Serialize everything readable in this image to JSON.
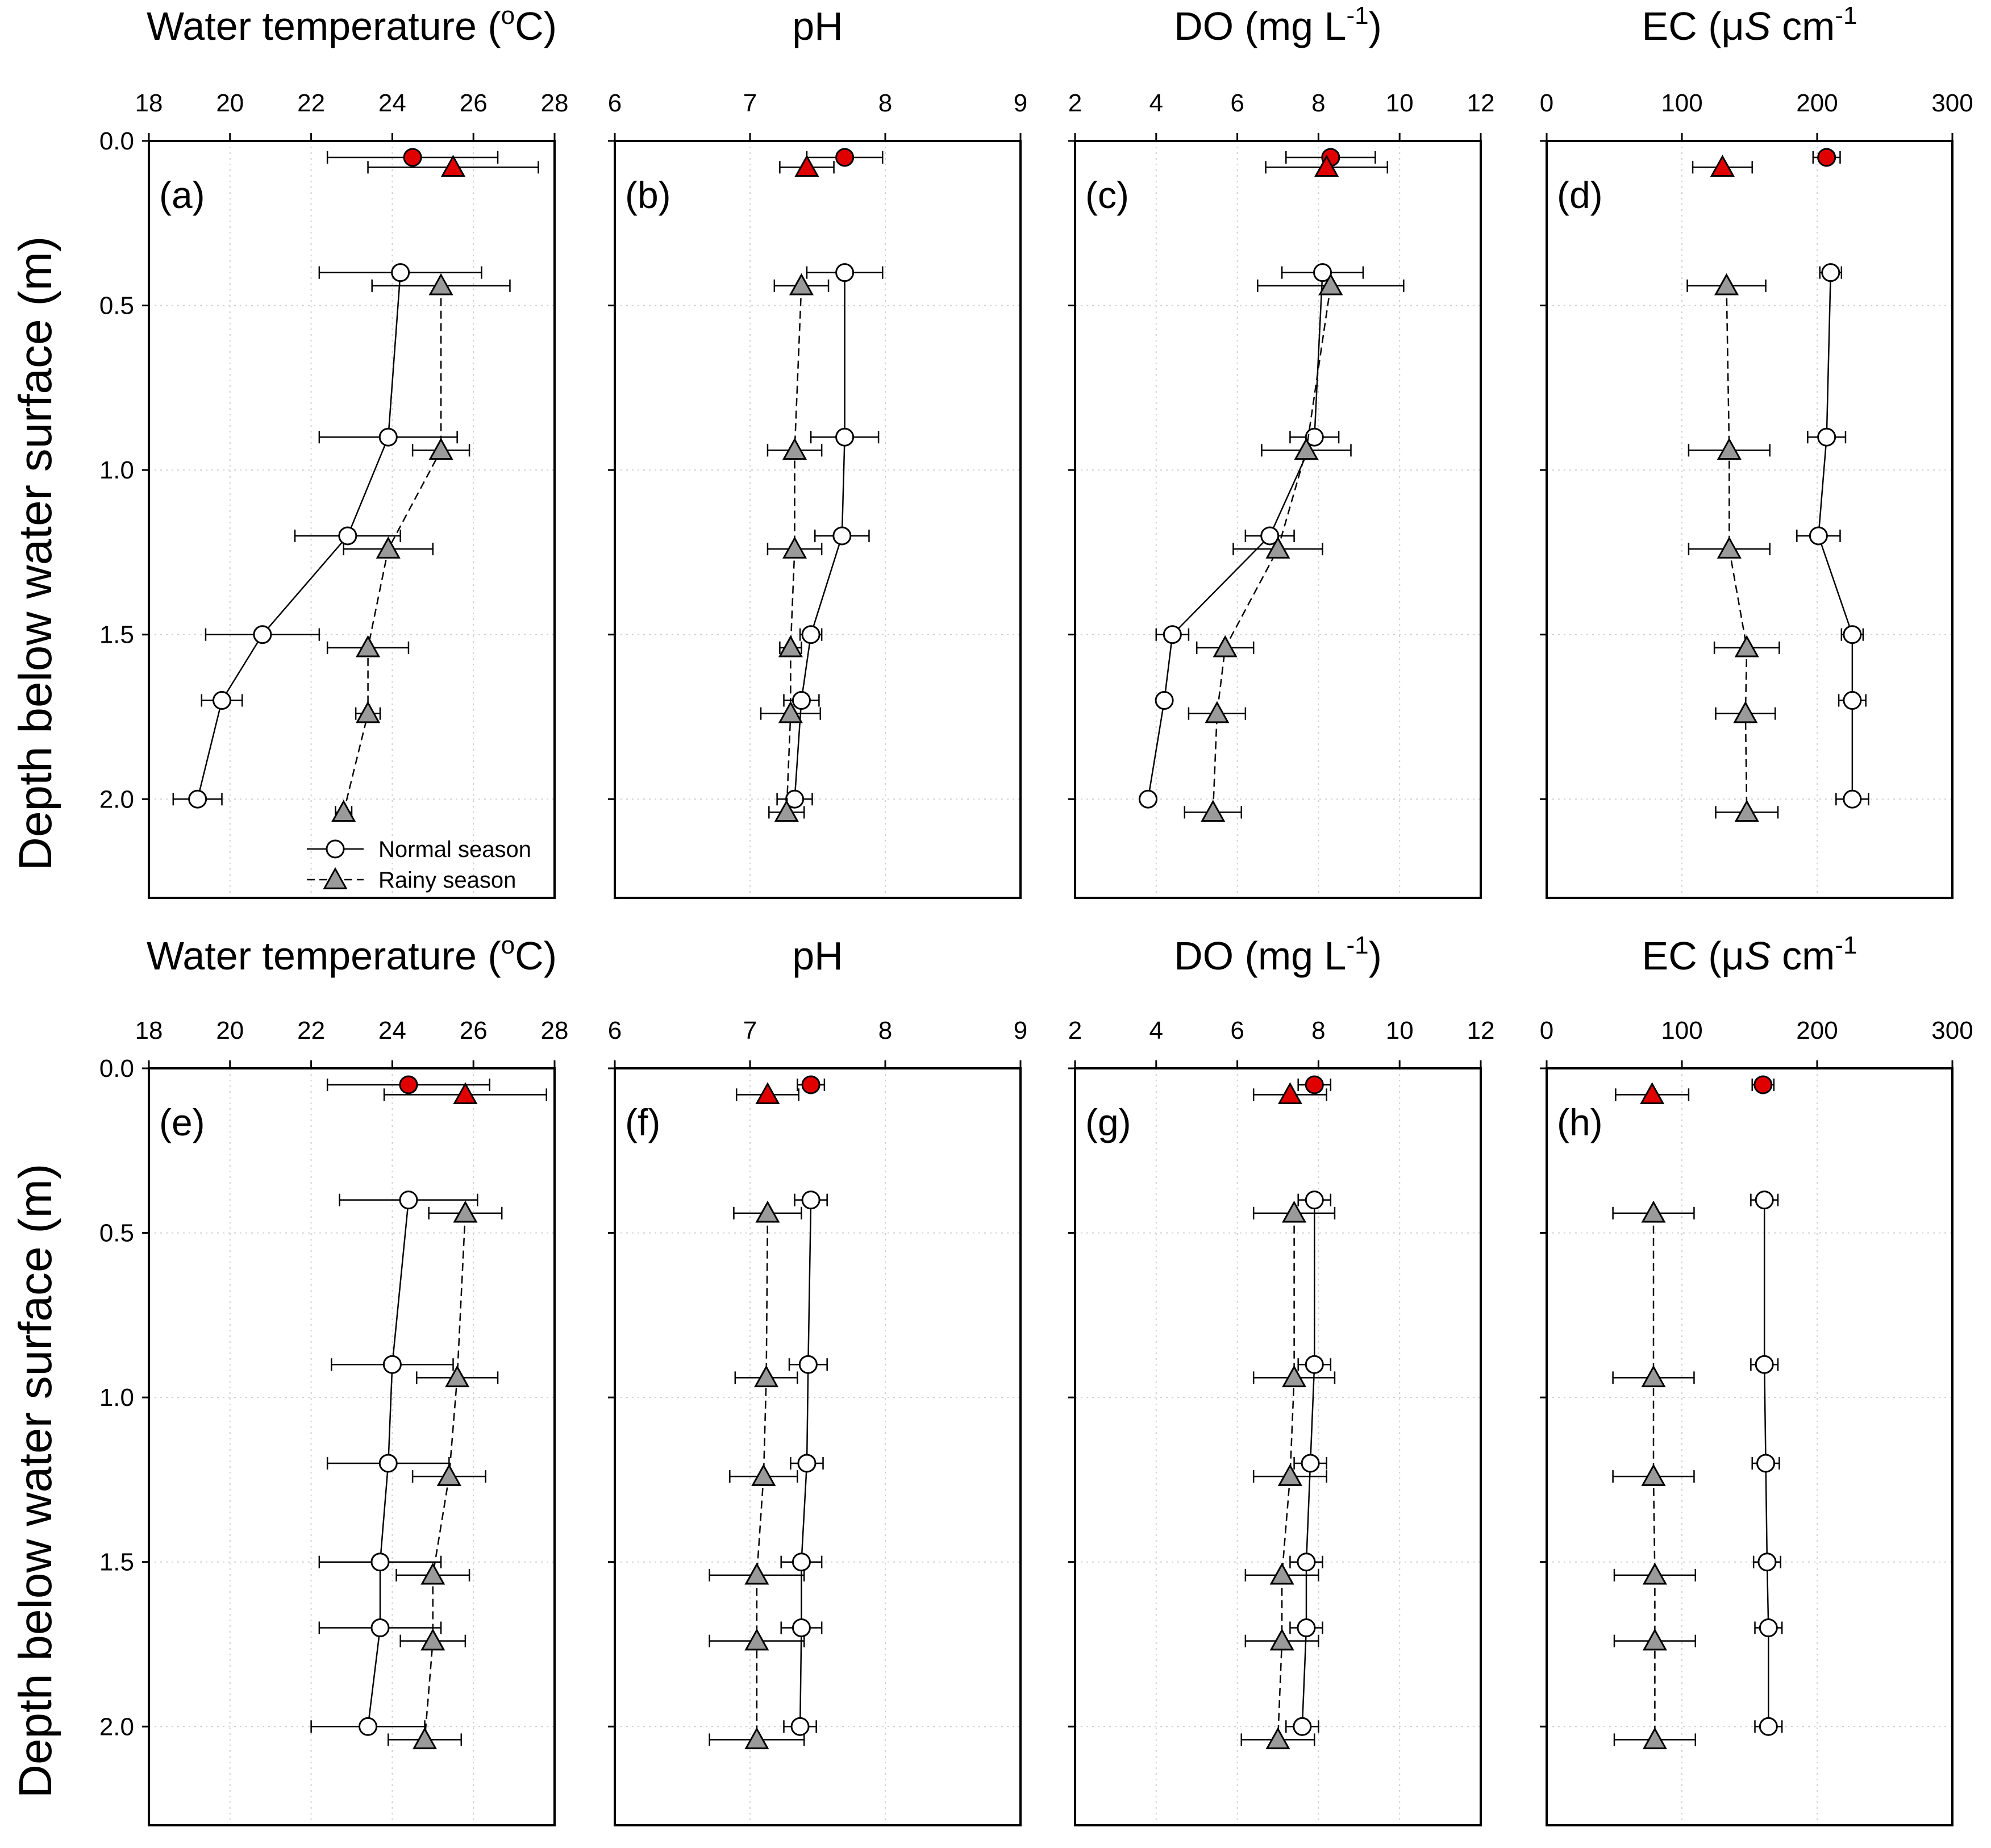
{
  "figure": {
    "ylabel": "Depth below water surface (m)",
    "legend": {
      "normal": "Normal season",
      "rainy": "Rainy season",
      "placement": "bottom-right of panel (a)"
    },
    "colors": {
      "normal_fill": "#ffffff",
      "rainy_fill": "#9a9a9a",
      "surface_fill": "#e00000",
      "stroke": "#000000",
      "grid": "#d0d0d0"
    }
  },
  "chart_data": [
    {
      "type": "scatter",
      "panel": "(a)",
      "row": 0,
      "col": 0,
      "title_main": "Water temperature (",
      "title_sup": "o",
      "title_end": "C)",
      "xlim": [
        18,
        28
      ],
      "xticks": [
        "18",
        "20",
        "22",
        "24",
        "26",
        "28"
      ],
      "ylim": [
        2.3,
        0.0
      ],
      "yticks": [
        "0.0",
        "0.5",
        "1.0",
        "1.5",
        "2.0"
      ],
      "normal": {
        "depth": [
          0.05,
          0.4,
          0.9,
          1.2,
          1.5,
          1.7,
          2.0
        ],
        "value": [
          24.5,
          24.2,
          23.9,
          22.9,
          20.8,
          19.8,
          19.2
        ],
        "err": [
          2.1,
          2.0,
          1.7,
          1.3,
          1.4,
          0.5,
          0.6
        ]
      },
      "rainy": {
        "depth": [
          0.08,
          0.44,
          0.94,
          1.24,
          1.54,
          1.74,
          2.04
        ],
        "value": [
          25.5,
          25.2,
          25.2,
          23.9,
          23.4,
          23.4,
          22.8
        ],
        "err": [
          2.1,
          1.7,
          0.7,
          1.1,
          1.0,
          0.3,
          0.2
        ]
      }
    },
    {
      "type": "scatter",
      "panel": "(b)",
      "row": 0,
      "col": 1,
      "title_main": "pH",
      "title_sup": "",
      "title_end": "",
      "xlim": [
        6,
        9
      ],
      "xticks": [
        "6",
        "7",
        "8",
        "9"
      ],
      "ylim": [
        2.3,
        0.0
      ],
      "yticks": [
        "0.0",
        "0.5",
        "1.0",
        "1.5",
        "2.0"
      ],
      "normal": {
        "depth": [
          0.05,
          0.4,
          0.9,
          1.2,
          1.5,
          1.7,
          2.0
        ],
        "value": [
          7.7,
          7.7,
          7.7,
          7.68,
          7.45,
          7.38,
          7.33
        ],
        "err": [
          0.28,
          0.28,
          0.25,
          0.2,
          0.08,
          0.13,
          0.13
        ]
      },
      "rainy": {
        "depth": [
          0.08,
          0.44,
          0.94,
          1.24,
          1.54,
          1.74,
          2.04
        ],
        "value": [
          7.42,
          7.38,
          7.33,
          7.33,
          7.3,
          7.3,
          7.27
        ],
        "err": [
          0.2,
          0.2,
          0.2,
          0.2,
          0.08,
          0.22,
          0.13
        ]
      }
    },
    {
      "type": "scatter",
      "panel": "(c)",
      "row": 0,
      "col": 2,
      "title_main": "DO (mg L",
      "title_sup": "-1",
      "title_end": ")",
      "xlim": [
        2,
        12
      ],
      "xticks": [
        "2",
        "4",
        "6",
        "8",
        "10",
        "12"
      ],
      "ylim": [
        2.3,
        0.0
      ],
      "yticks": [
        "0.0",
        "0.5",
        "1.0",
        "1.5",
        "2.0"
      ],
      "normal": {
        "depth": [
          0.05,
          0.4,
          0.9,
          1.2,
          1.5,
          1.7,
          2.0
        ],
        "value": [
          8.3,
          8.1,
          7.9,
          6.8,
          4.4,
          4.2,
          3.8
        ],
        "err": [
          1.1,
          1.0,
          0.6,
          0.6,
          0.4,
          0.0,
          0.0
        ]
      },
      "rainy": {
        "depth": [
          0.08,
          0.44,
          0.94,
          1.24,
          1.54,
          1.74,
          2.04
        ],
        "value": [
          8.2,
          8.3,
          7.7,
          7.0,
          5.7,
          5.5,
          5.4
        ],
        "err": [
          1.5,
          1.8,
          1.1,
          1.1,
          0.7,
          0.7,
          0.7
        ]
      }
    },
    {
      "type": "scatter",
      "panel": "(d)",
      "row": 0,
      "col": 3,
      "title_main": "EC (μ",
      "title_italic": "S",
      "title_sup": "-1",
      "title_end": "",
      "title_mid": " cm",
      "xlim": [
        0,
        300
      ],
      "xticks": [
        "0",
        "100",
        "200",
        "300"
      ],
      "ylim": [
        2.3,
        0.0
      ],
      "yticks": [
        "0.0",
        "0.5",
        "1.0",
        "1.5",
        "2.0"
      ],
      "normal": {
        "depth": [
          0.05,
          0.4,
          0.9,
          1.2,
          1.5,
          1.7,
          2.0
        ],
        "value": [
          207,
          210,
          207,
          201,
          226,
          226,
          226
        ],
        "err": [
          10,
          8,
          14,
          16,
          8,
          10,
          12
        ]
      },
      "rainy": {
        "depth": [
          0.08,
          0.44,
          0.94,
          1.24,
          1.54,
          1.74,
          2.04
        ],
        "value": [
          130,
          133,
          135,
          135,
          148,
          147,
          148
        ],
        "err": [
          22,
          29,
          30,
          30,
          24,
          22,
          23
        ]
      }
    },
    {
      "type": "scatter",
      "panel": "(e)",
      "row": 1,
      "col": 0,
      "title_main": "Water temperature (",
      "title_sup": "o",
      "title_end": "C)",
      "xlim": [
        18,
        28
      ],
      "xticks": [
        "18",
        "20",
        "22",
        "24",
        "26",
        "28"
      ],
      "ylim": [
        2.3,
        0.0
      ],
      "yticks": [
        "0.0",
        "0.5",
        "1.0",
        "1.5",
        "2.0"
      ],
      "normal": {
        "depth": [
          0.05,
          0.4,
          0.9,
          1.2,
          1.5,
          1.7,
          2.0
        ],
        "value": [
          24.4,
          24.4,
          24.0,
          23.9,
          23.7,
          23.7,
          23.4
        ],
        "err": [
          2.0,
          1.7,
          1.5,
          1.5,
          1.5,
          1.5,
          1.4
        ]
      },
      "rainy": {
        "depth": [
          0.08,
          0.44,
          0.94,
          1.24,
          1.54,
          1.74,
          2.04
        ],
        "value": [
          25.8,
          25.8,
          25.6,
          25.4,
          25.0,
          25.0,
          24.8
        ],
        "err": [
          2.0,
          0.9,
          1.0,
          0.9,
          0.9,
          0.8,
          0.9
        ]
      }
    },
    {
      "type": "scatter",
      "panel": "(f)",
      "row": 1,
      "col": 1,
      "title_main": "pH",
      "title_sup": "",
      "title_end": "",
      "xlim": [
        6,
        9
      ],
      "xticks": [
        "6",
        "7",
        "8",
        "9"
      ],
      "ylim": [
        2.3,
        0.0
      ],
      "yticks": [
        "0.0",
        "0.5",
        "1.0",
        "1.5",
        "2.0"
      ],
      "normal": {
        "depth": [
          0.05,
          0.4,
          0.9,
          1.2,
          1.5,
          1.7,
          2.0
        ],
        "value": [
          7.45,
          7.45,
          7.43,
          7.42,
          7.38,
          7.38,
          7.37
        ],
        "err": [
          0.1,
          0.12,
          0.14,
          0.12,
          0.15,
          0.15,
          0.12
        ]
      },
      "rainy": {
        "depth": [
          0.08,
          0.44,
          0.94,
          1.24,
          1.54,
          1.74,
          2.04
        ],
        "value": [
          7.13,
          7.13,
          7.12,
          7.1,
          7.05,
          7.05,
          7.05
        ],
        "err": [
          0.23,
          0.25,
          0.23,
          0.25,
          0.35,
          0.35,
          0.35
        ]
      }
    },
    {
      "type": "scatter",
      "panel": "(g)",
      "row": 1,
      "col": 2,
      "title_main": "DO (mg L",
      "title_sup": "-1",
      "title_end": ")",
      "xlim": [
        2,
        12
      ],
      "xticks": [
        "2",
        "4",
        "6",
        "8",
        "10",
        "12"
      ],
      "ylim": [
        2.3,
        0.0
      ],
      "yticks": [
        "0.0",
        "0.5",
        "1.0",
        "1.5",
        "2.0"
      ],
      "normal": {
        "depth": [
          0.05,
          0.4,
          0.9,
          1.2,
          1.5,
          1.7,
          2.0
        ],
        "value": [
          7.9,
          7.9,
          7.9,
          7.8,
          7.7,
          7.7,
          7.6
        ],
        "err": [
          0.4,
          0.4,
          0.4,
          0.4,
          0.4,
          0.4,
          0.4
        ]
      },
      "rainy": {
        "depth": [
          0.08,
          0.44,
          0.94,
          1.24,
          1.54,
          1.74,
          2.04
        ],
        "value": [
          7.3,
          7.4,
          7.4,
          7.3,
          7.1,
          7.1,
          7.0
        ],
        "err": [
          0.9,
          1.0,
          1.0,
          0.9,
          0.9,
          0.9,
          0.9
        ]
      }
    },
    {
      "type": "scatter",
      "panel": "(h)",
      "row": 1,
      "col": 3,
      "title_main": "EC (μ",
      "title_italic": "S",
      "title_sup": "-1",
      "title_end": "",
      "title_mid": " cm",
      "xlim": [
        0,
        300
      ],
      "xticks": [
        "0",
        "100",
        "200",
        "300"
      ],
      "ylim": [
        2.3,
        0.0
      ],
      "yticks": [
        "0.0",
        "0.5",
        "1.0",
        "1.5",
        "2.0"
      ],
      "normal": {
        "depth": [
          0.05,
          0.4,
          0.9,
          1.2,
          1.5,
          1.7,
          2.0
        ],
        "value": [
          160,
          161,
          161,
          162,
          163,
          164,
          164
        ],
        "err": [
          8,
          10,
          10,
          10,
          10,
          10,
          10
        ]
      },
      "rainy": {
        "depth": [
          0.08,
          0.44,
          0.94,
          1.24,
          1.54,
          1.74,
          2.04
        ],
        "value": [
          78,
          79,
          79,
          79,
          80,
          80,
          80
        ],
        "err": [
          27,
          30,
          30,
          30,
          30,
          30,
          30
        ]
      }
    }
  ]
}
